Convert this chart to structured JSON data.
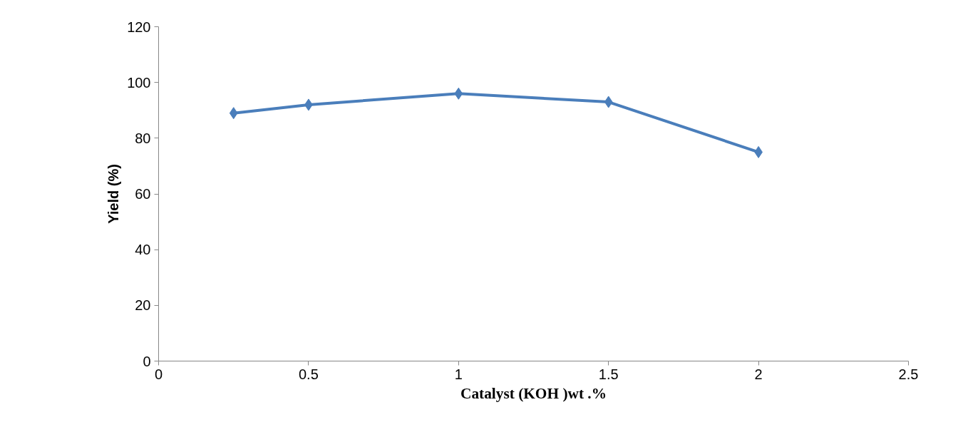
{
  "chart_data": {
    "type": "line",
    "xlabel": "Catalyst (KOH )wt .%",
    "ylabel": "Yield (%)",
    "x": [
      0.25,
      0.5,
      1,
      1.5,
      2
    ],
    "series": [
      {
        "color": "#4a7ebb",
        "values": [
          89,
          92,
          96,
          93,
          75
        ]
      }
    ],
    "xlim": [
      0,
      2.5
    ],
    "xticks": [
      0,
      0.5,
      1,
      1.5,
      2,
      2.5
    ],
    "ylim": [
      0,
      120
    ],
    "yticks": [
      0,
      20,
      40,
      60,
      80,
      100,
      120
    ],
    "grid": false,
    "marker": "diamond",
    "line_style": "solid"
  }
}
